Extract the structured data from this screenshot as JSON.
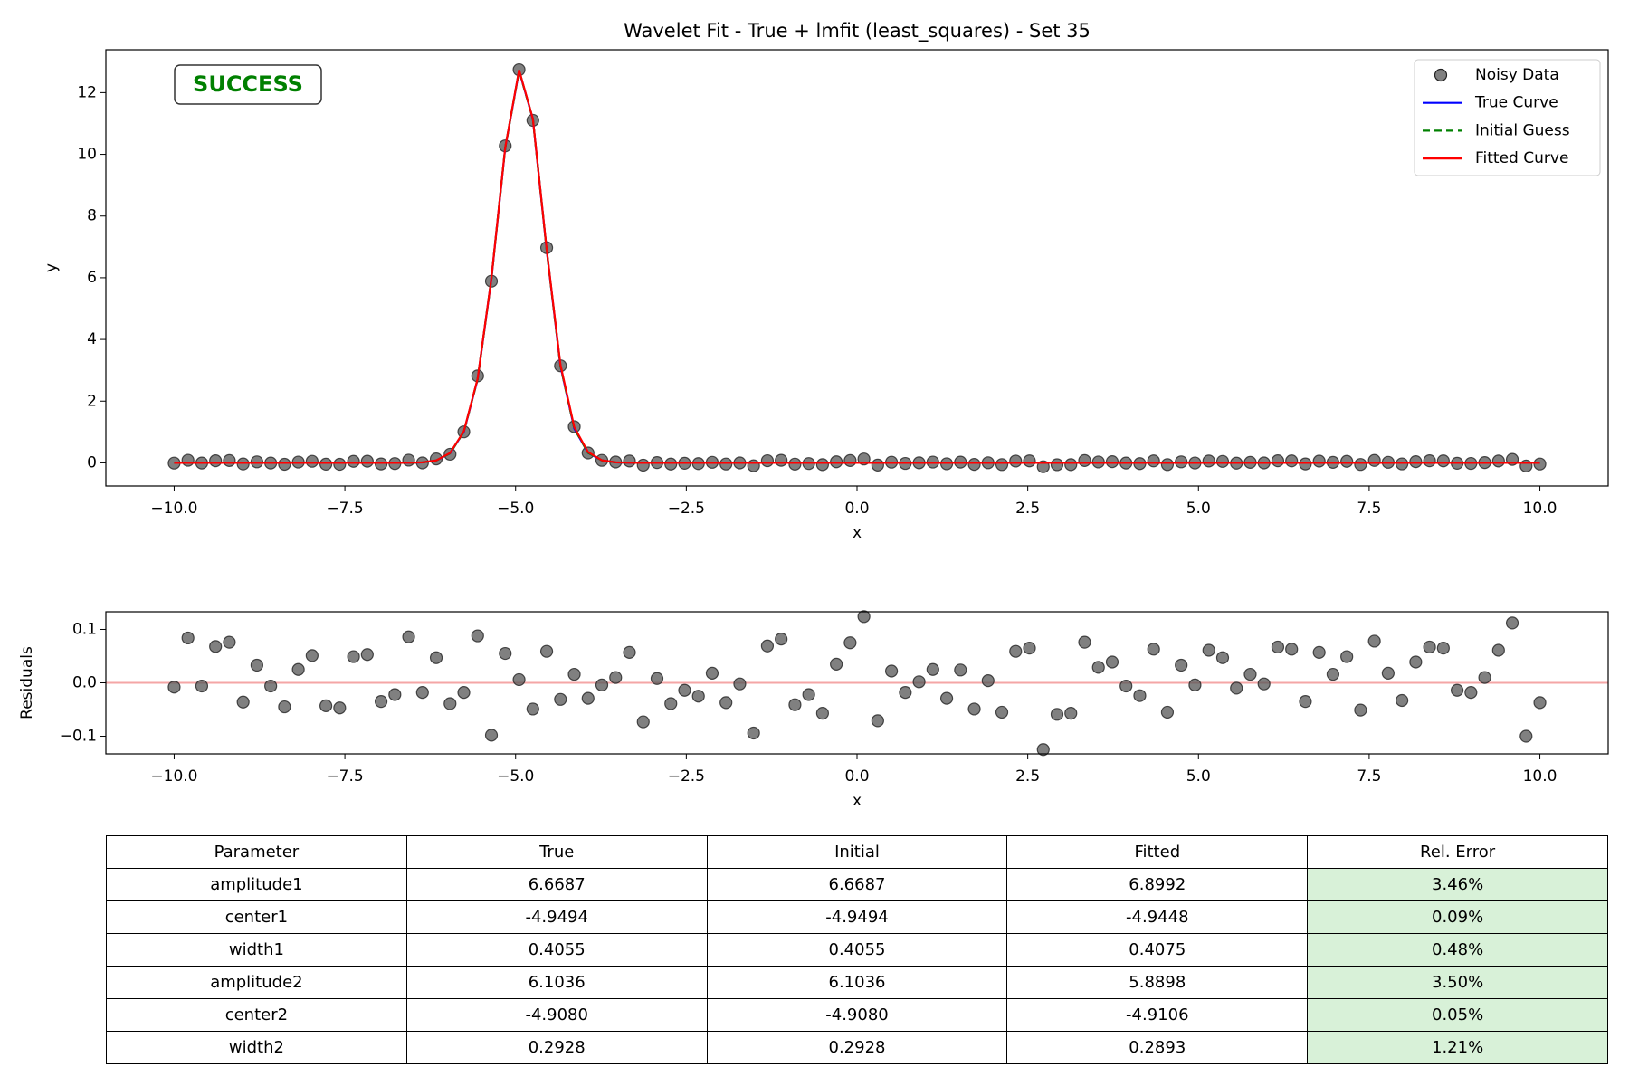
{
  "chart_data": [
    {
      "type": "line",
      "title": "Wavelet Fit - True + lmfit (least_squares) - Set 35",
      "x_label": "x",
      "y_label": "y",
      "annotation": {
        "text": "SUCCESS",
        "color": "#008000"
      },
      "legend": "upper right",
      "grid": false,
      "xlim": [
        -11,
        11
      ],
      "ylim": [
        -0.75,
        13.39
      ],
      "xticks": [
        {
          "value": -10,
          "label": "−10.0"
        },
        {
          "value": -7.5,
          "label": "−7.5"
        },
        {
          "value": -5,
          "label": "−5.0"
        },
        {
          "value": -2.5,
          "label": "−2.5"
        },
        {
          "value": 0,
          "label": "0.0"
        },
        2.5,
        {
          "value": 5,
          "label": "5.0"
        },
        7.5,
        {
          "value": 10,
          "label": "10.0"
        }
      ],
      "yticks": [
        0,
        2,
        4,
        6,
        8,
        10,
        12
      ],
      "x": [
        -10,
        -9.798,
        -9.596,
        -9.394,
        -9.192,
        -8.99,
        -8.788,
        -8.586,
        -8.384,
        -8.182,
        -7.98,
        -7.778,
        -7.576,
        -7.374,
        -7.172,
        -6.97,
        -6.768,
        -6.566,
        -6.364,
        -6.162,
        -5.96,
        -5.758,
        -5.556,
        -5.354,
        -5.152,
        -4.949,
        -4.747,
        -4.545,
        -4.343,
        -4.141,
        -3.939,
        -3.737,
        -3.535,
        -3.333,
        -3.131,
        -2.929,
        -2.727,
        -2.525,
        -2.323,
        -2.121,
        -1.919,
        -1.717,
        -1.515,
        -1.313,
        -1.111,
        -0.909,
        -0.707,
        -0.505,
        -0.303,
        -0.101,
        0.101,
        0.303,
        0.505,
        0.707,
        0.909,
        1.111,
        1.313,
        1.515,
        1.717,
        1.919,
        2.121,
        2.323,
        2.525,
        2.727,
        2.929,
        3.131,
        3.333,
        3.535,
        3.737,
        3.939,
        4.141,
        4.343,
        4.545,
        4.747,
        4.949,
        5.152,
        5.354,
        5.556,
        5.758,
        5.96,
        6.162,
        6.364,
        6.566,
        6.768,
        6.97,
        7.172,
        7.374,
        7.576,
        7.778,
        7.98,
        8.182,
        8.384,
        8.586,
        8.788,
        8.99,
        9.192,
        9.394,
        9.596,
        9.798,
        10
      ],
      "series": [
        {
          "name": "Noisy Data",
          "style": "markers",
          "color": "#555555",
          "values": [
            -0.008,
            0.084,
            -0.006,
            0.068,
            0.076,
            -0.036,
            0.033,
            -0.006,
            -0.045,
            0.025,
            0.051,
            -0.043,
            -0.047,
            0.049,
            0.053,
            -0.035,
            -0.022,
            0.088,
            -0.002,
            0.127,
            0.279,
            1.005,
            2.817,
            5.889,
            10.275,
            12.743,
            11.103,
            6.973,
            3.146,
            1.173,
            0.32,
            0.081,
            0.027,
            0.06,
            -0.073,
            0.008,
            -0.039,
            -0.014,
            -0.025,
            0.018,
            -0.037,
            -0.002,
            -0.094,
            0.069,
            0.082,
            -0.041,
            -0.022,
            -0.057,
            0.035,
            0.075,
            0.124,
            -0.071,
            0.022,
            -0.018,
            0.002,
            0.025,
            -0.029,
            0.024,
            -0.049,
            0.004,
            -0.055,
            0.059,
            0.065,
            -0.125,
            -0.059,
            -0.057,
            0.076,
            0.029,
            0.039,
            -0.006,
            -0.024,
            0.063,
            -0.055,
            0.033,
            -0.004,
            0.061,
            0.047,
            -0.01,
            0.016,
            -0.002,
            0.067,
            0.063,
            -0.035,
            0.057,
            0.016,
            0.049,
            -0.051,
            0.078,
            0.018,
            -0.033,
            0.039,
            0.067,
            0.065,
            -0.014,
            -0.018,
            0.01,
            0.061,
            0.112,
            -0.1,
            -0.037
          ]
        },
        {
          "name": "True Curve",
          "style": "solid",
          "color": "#0000ff",
          "values": [
            0,
            0,
            0,
            0,
            0,
            0,
            0,
            0,
            0,
            0,
            0,
            0,
            0,
            0,
            0,
            0,
            0,
            0.002,
            0.015,
            0.077,
            0.309,
            1.006,
            2.71,
            5.977,
            10.21,
            12.712,
            11.144,
            6.897,
            3.134,
            1.114,
            0.326,
            0.079,
            0.015,
            0.002,
            0,
            0,
            0,
            0,
            0,
            0,
            0,
            0,
            0,
            0,
            0,
            0,
            0,
            0,
            0,
            0,
            0,
            0,
            0,
            0,
            0,
            0,
            0,
            0,
            0,
            0,
            0,
            0,
            0,
            0,
            0,
            0,
            0,
            0,
            0,
            0,
            0,
            0,
            0,
            0,
            0,
            0,
            0,
            0,
            0,
            0,
            0,
            0,
            0,
            0,
            0,
            0,
            0,
            0,
            0,
            0,
            0,
            0,
            0,
            0,
            0,
            0,
            0,
            0,
            0,
            0
          ]
        },
        {
          "name": "Initial Guess",
          "style": "dashed",
          "color": "#008000",
          "values": [
            0,
            0,
            0,
            0,
            0,
            0,
            0,
            0,
            0,
            0,
            0,
            0,
            0,
            0,
            0,
            0,
            0,
            0.002,
            0.015,
            0.077,
            0.309,
            1.006,
            2.71,
            5.977,
            10.21,
            12.712,
            11.144,
            6.897,
            3.134,
            1.114,
            0.326,
            0.079,
            0.015,
            0.002,
            0,
            0,
            0,
            0,
            0,
            0,
            0,
            0,
            0,
            0,
            0,
            0,
            0,
            0,
            0,
            0,
            0,
            0,
            0,
            0,
            0,
            0,
            0,
            0,
            0,
            0,
            0,
            0,
            0,
            0,
            0,
            0,
            0,
            0,
            0,
            0,
            0,
            0,
            0,
            0,
            0,
            0,
            0,
            0,
            0,
            0,
            0,
            0,
            0,
            0,
            0,
            0,
            0,
            0,
            0,
            0,
            0,
            0,
            0,
            0,
            0,
            0,
            0,
            0,
            0,
            0
          ]
        },
        {
          "name": "Fitted Curve",
          "style": "solid",
          "color": "#ff0000",
          "values": [
            0,
            0,
            0,
            0,
            0,
            0,
            0,
            0,
            0,
            0,
            0,
            0,
            0,
            0,
            0,
            0,
            0,
            0.003,
            0.016,
            0.08,
            0.318,
            1.023,
            2.729,
            5.987,
            10.22,
            12.737,
            11.152,
            6.914,
            3.177,
            1.157,
            0.349,
            0.085,
            0.017,
            0.003,
            0,
            0,
            0,
            0,
            0,
            0,
            0,
            0,
            0,
            0,
            0,
            0,
            0,
            0,
            0,
            0,
            0,
            0,
            0,
            0,
            0,
            0,
            0,
            0,
            0,
            0,
            0,
            0,
            0,
            0,
            0,
            0,
            0,
            0,
            0,
            0,
            0,
            0,
            0,
            0,
            0,
            0,
            0,
            0,
            0,
            0,
            0,
            0,
            0,
            0,
            0,
            0,
            0,
            0,
            0,
            0,
            0,
            0,
            0,
            0,
            0,
            0,
            0,
            0,
            0,
            0
          ]
        }
      ]
    },
    {
      "type": "scatter",
      "x_label": "x",
      "y_label": "Residuals",
      "grid": false,
      "xlim": [
        -11,
        11
      ],
      "ylim": [
        -0.133,
        0.133
      ],
      "xticks": [
        {
          "value": -10,
          "label": "−10.0"
        },
        {
          "value": -7.5,
          "label": "−7.5"
        },
        {
          "value": -5,
          "label": "−5.0"
        },
        {
          "value": -2.5,
          "label": "−2.5"
        },
        {
          "value": 0,
          "label": "0.0"
        },
        2.5,
        {
          "value": 5,
          "label": "5.0"
        },
        7.5,
        {
          "value": 10,
          "label": "10.0"
        }
      ],
      "yticks": [
        {
          "value": -0.1,
          "label": "−0.1"
        },
        {
          "value": 0,
          "label": "0.0"
        },
        0.1
      ],
      "reference_line": {
        "y": 0,
        "color": "#f4a6a6"
      },
      "x": [
        -10,
        -9.798,
        -9.596,
        -9.394,
        -9.192,
        -8.99,
        -8.788,
        -8.586,
        -8.384,
        -8.182,
        -7.98,
        -7.778,
        -7.576,
        -7.374,
        -7.172,
        -6.97,
        -6.768,
        -6.566,
        -6.364,
        -6.162,
        -5.96,
        -5.758,
        -5.556,
        -5.354,
        -5.152,
        -4.949,
        -4.747,
        -4.545,
        -4.343,
        -4.141,
        -3.939,
        -3.737,
        -3.535,
        -3.333,
        -3.131,
        -2.929,
        -2.727,
        -2.525,
        -2.323,
        -2.121,
        -1.919,
        -1.717,
        -1.515,
        -1.313,
        -1.111,
        -0.909,
        -0.707,
        -0.505,
        -0.303,
        -0.101,
        0.101,
        0.303,
        0.505,
        0.707,
        0.909,
        1.111,
        1.313,
        1.515,
        1.717,
        1.919,
        2.121,
        2.323,
        2.525,
        2.727,
        2.929,
        3.131,
        3.333,
        3.535,
        3.737,
        3.939,
        4.141,
        4.343,
        4.545,
        4.747,
        4.949,
        5.152,
        5.354,
        5.556,
        5.758,
        5.96,
        6.162,
        6.364,
        6.566,
        6.768,
        6.97,
        7.172,
        7.374,
        7.576,
        7.778,
        7.98,
        8.182,
        8.384,
        8.586,
        8.788,
        8.99,
        9.192,
        9.394,
        9.596,
        9.798,
        10
      ],
      "color": "#555555",
      "values": [
        -0.008,
        0.084,
        -0.006,
        0.068,
        0.076,
        -0.036,
        0.033,
        -0.006,
        -0.045,
        0.025,
        0.051,
        -0.043,
        -0.047,
        0.049,
        0.053,
        -0.035,
        -0.022,
        0.086,
        -0.018,
        0.047,
        -0.039,
        -0.018,
        0.088,
        -0.098,
        0.055,
        0.006,
        -0.049,
        0.059,
        -0.031,
        0.016,
        -0.029,
        -0.004,
        0.01,
        0.057,
        -0.073,
        0.008,
        -0.039,
        -0.014,
        -0.025,
        0.018,
        -0.037,
        -0.002,
        -0.094,
        0.069,
        0.082,
        -0.041,
        -0.022,
        -0.057,
        0.035,
        0.075,
        0.124,
        -0.071,
        0.022,
        -0.018,
        0.002,
        0.025,
        -0.029,
        0.024,
        -0.049,
        0.004,
        -0.055,
        0.059,
        0.065,
        -0.125,
        -0.059,
        -0.057,
        0.076,
        0.029,
        0.039,
        -0.006,
        -0.024,
        0.063,
        -0.055,
        0.033,
        -0.004,
        0.061,
        0.047,
        -0.01,
        0.016,
        -0.002,
        0.067,
        0.063,
        -0.035,
        0.057,
        0.016,
        0.049,
        -0.051,
        0.078,
        0.018,
        -0.033,
        0.039,
        0.067,
        0.065,
        -0.014,
        -0.018,
        0.01,
        0.061,
        0.112,
        -0.1,
        -0.037
      ]
    }
  ],
  "table": {
    "highlight_column": 4,
    "highlight_color": "#d8f1d8",
    "columns": [
      "Parameter",
      "True",
      "Initial",
      "Fitted",
      "Rel. Error"
    ],
    "rows": [
      [
        "amplitude1",
        "6.6687",
        "6.6687",
        "6.8992",
        "3.46%"
      ],
      [
        "center1",
        "-4.9494",
        "-4.9494",
        "-4.9448",
        "0.09%"
      ],
      [
        "width1",
        "0.4055",
        "0.4055",
        "0.4075",
        "0.48%"
      ],
      [
        "amplitude2",
        "6.1036",
        "6.1036",
        "5.8898",
        "3.50%"
      ],
      [
        "center2",
        "-4.9080",
        "-4.9080",
        "-4.9106",
        "0.05%"
      ],
      [
        "width2",
        "0.2928",
        "0.2928",
        "0.2893",
        "1.21%"
      ]
    ]
  }
}
